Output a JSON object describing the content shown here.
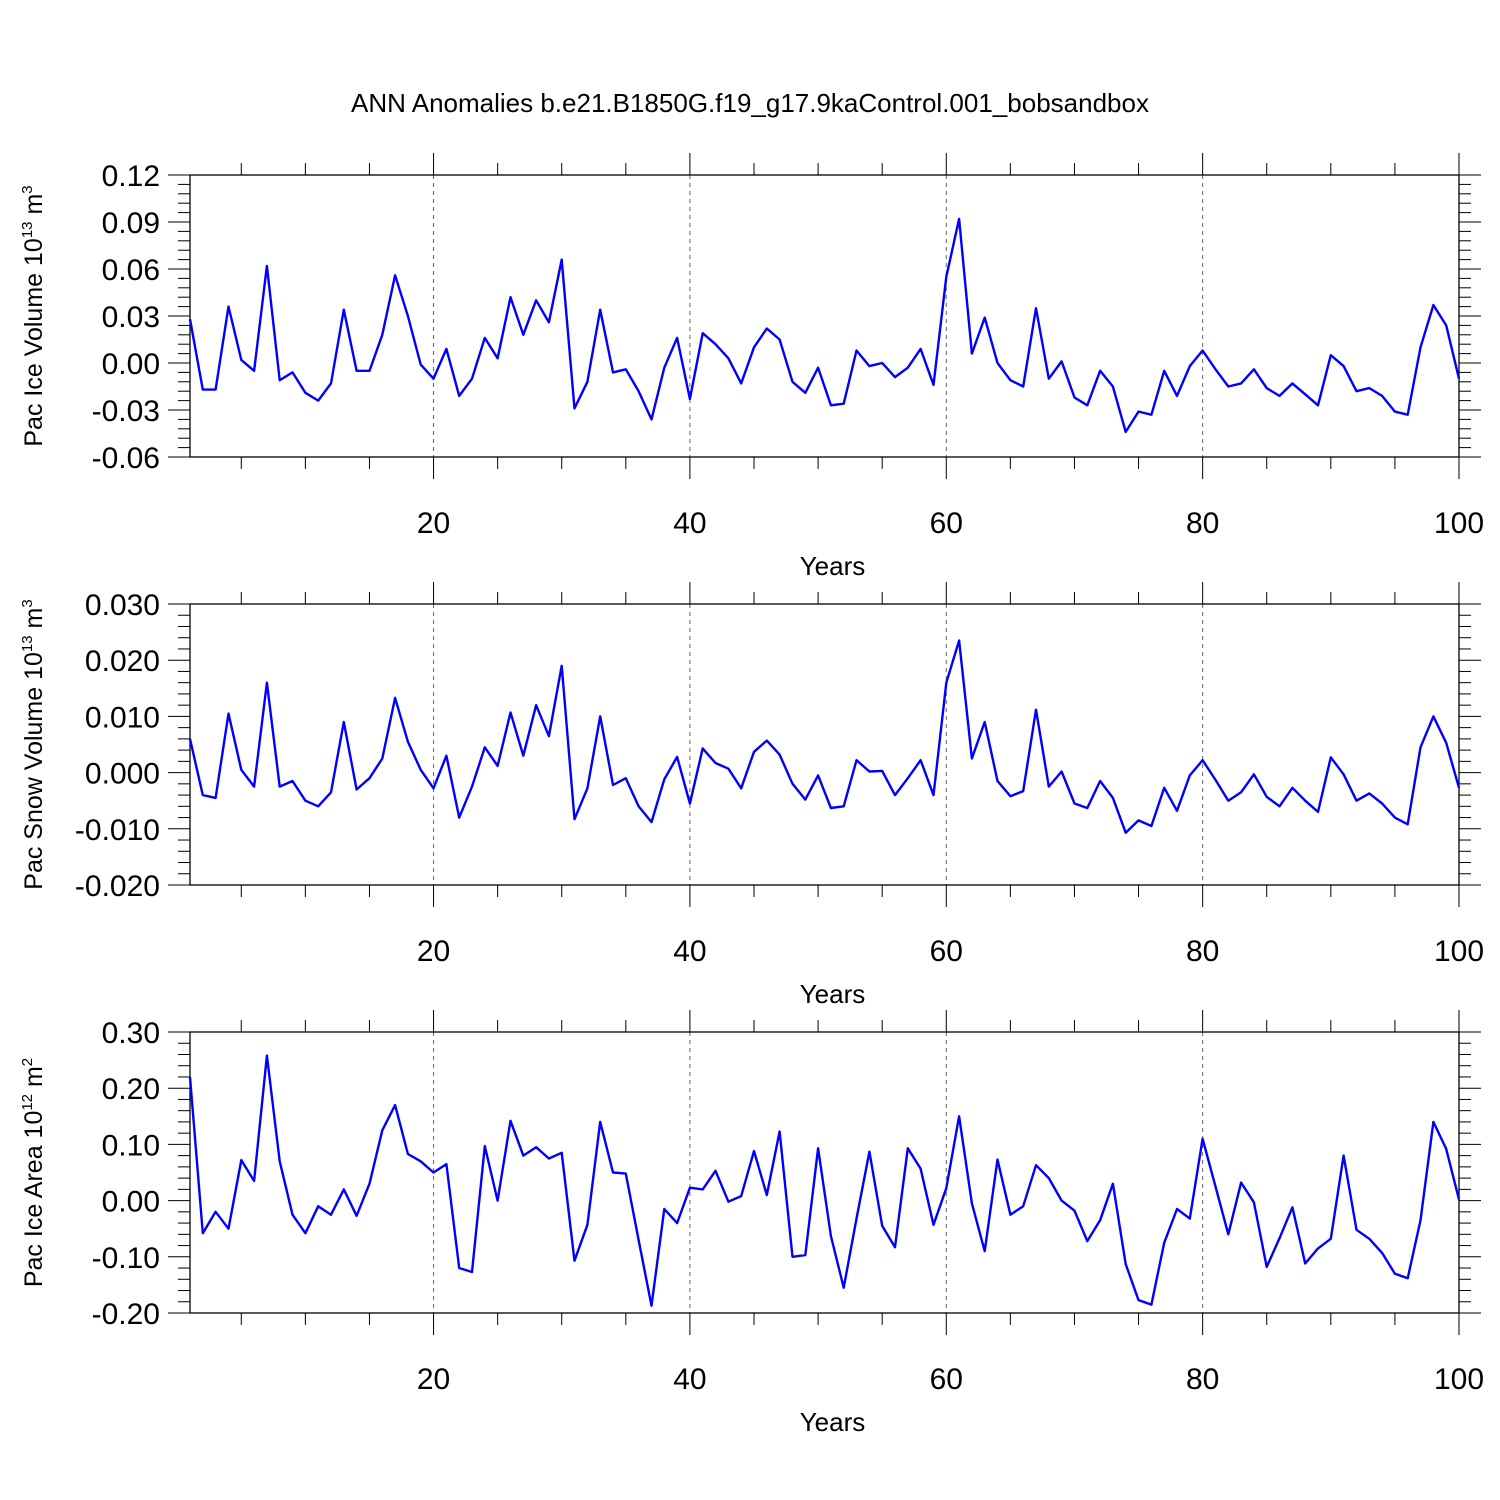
{
  "title": "ANN Anomalies b.e21.B1850G.f19_g17.9kaControl.001_bobsandbox",
  "colors": {
    "line": "#0000ff",
    "axis": "#000000",
    "grid": "#666666"
  },
  "chart_data": [
    {
      "type": "line",
      "ylabel": {
        "text": "Pac Ice Volume 10",
        "exp": "13",
        "unit_text": " m",
        "unit_exp": "3"
      },
      "xlabel": "Years",
      "xlim": [
        1,
        100
      ],
      "ylim": [
        -0.06,
        0.12
      ],
      "xticks": [
        20,
        40,
        60,
        80,
        100
      ],
      "xtick_labels": [
        "20",
        "40",
        "60",
        "80",
        "100"
      ],
      "yticks": [
        -0.06,
        -0.03,
        0.0,
        0.03,
        0.06,
        0.09,
        0.12
      ],
      "ytick_labels": [
        "-0.06",
        "-0.03",
        "0.00",
        "0.03",
        "0.06",
        "0.09",
        "0.12"
      ],
      "grid": "vertical dashed at major x ticks",
      "series": [
        {
          "x_start": 1,
          "values": [
            0.028,
            -0.017,
            -0.017,
            0.036,
            0.002,
            -0.005,
            0.062,
            -0.011,
            -0.006,
            -0.019,
            -0.024,
            -0.013,
            0.034,
            -0.005,
            -0.005,
            0.018,
            0.056,
            0.03,
            -0.001,
            -0.01,
            0.009,
            -0.021,
            -0.01,
            0.016,
            0.003,
            0.042,
            0.018,
            0.04,
            0.026,
            0.066,
            -0.029,
            -0.012,
            0.034,
            -0.006,
            -0.004,
            -0.018,
            -0.036,
            -0.003,
            0.016,
            -0.023,
            0.019,
            0.012,
            0.003,
            -0.013,
            0.01,
            0.022,
            0.015,
            -0.012,
            -0.019,
            -0.003,
            -0.027,
            -0.026,
            0.008,
            -0.002,
            0.0,
            -0.009,
            -0.003,
            0.009,
            -0.014,
            0.055,
            0.092,
            0.006,
            0.029,
            0.0,
            -0.011,
            -0.015,
            0.035,
            -0.01,
            0.001,
            -0.022,
            -0.027,
            -0.005,
            -0.015,
            -0.044,
            -0.031,
            -0.033,
            -0.005,
            -0.021,
            -0.002,
            0.008,
            -0.004,
            -0.015,
            -0.013,
            -0.004,
            -0.016,
            -0.021,
            -0.013,
            -0.02,
            -0.027,
            0.005,
            -0.002,
            -0.018,
            -0.016,
            -0.021,
            -0.031,
            -0.033,
            0.01,
            0.037,
            0.024,
            -0.01
          ]
        }
      ]
    },
    {
      "type": "line",
      "ylabel": {
        "text": "Pac Snow Volume 10",
        "exp": "13",
        "unit_text": " m",
        "unit_exp": "3"
      },
      "xlabel": "Years",
      "xlim": [
        1,
        100
      ],
      "ylim": [
        -0.02,
        0.03
      ],
      "xticks": [
        20,
        40,
        60,
        80,
        100
      ],
      "xtick_labels": [
        "20",
        "40",
        "60",
        "80",
        "100"
      ],
      "yticks": [
        -0.02,
        -0.01,
        0.0,
        0.01,
        0.02,
        0.03
      ],
      "ytick_labels": [
        "-0.020",
        "-0.010",
        "0.000",
        "0.010",
        "0.020",
        "0.030"
      ],
      "grid": "vertical dashed at major x ticks",
      "series": [
        {
          "x_start": 1,
          "values": [
            0.006,
            -0.004,
            -0.0045,
            0.0105,
            0.0005,
            -0.0025,
            0.016,
            -0.0025,
            -0.0015,
            -0.005,
            -0.006,
            -0.0035,
            0.009,
            -0.003,
            -0.001,
            0.0025,
            0.0133,
            0.0055,
            0.0005,
            -0.0028,
            0.003,
            -0.008,
            -0.0025,
            0.0045,
            0.0012,
            0.0107,
            0.003,
            0.012,
            0.0065,
            0.019,
            -0.0083,
            -0.0028,
            0.01,
            -0.0022,
            -0.001,
            -0.006,
            -0.0088,
            -0.0012,
            0.0028,
            -0.0055,
            0.0043,
            0.0017,
            0.0007,
            -0.0028,
            0.0037,
            0.0057,
            0.0032,
            -0.002,
            -0.0048,
            -0.0005,
            -0.0063,
            -0.006,
            0.0022,
            0.0002,
            0.0003,
            -0.004,
            -0.001,
            0.0022,
            -0.004,
            0.016,
            0.0235,
            0.0025,
            0.009,
            -0.0015,
            -0.0042,
            -0.0033,
            0.0112,
            -0.0025,
            0.0002,
            -0.0055,
            -0.0063,
            -0.0015,
            -0.0045,
            -0.0107,
            -0.0085,
            -0.0095,
            -0.0027,
            -0.0068,
            -0.0005,
            0.0022,
            -0.0013,
            -0.005,
            -0.0035,
            -0.0003,
            -0.0043,
            -0.006,
            -0.0027,
            -0.005,
            -0.007,
            0.0027,
            -0.0003,
            -0.005,
            -0.0037,
            -0.0055,
            -0.008,
            -0.0092,
            0.0045,
            0.01,
            0.0053,
            -0.0027
          ]
        }
      ]
    },
    {
      "type": "line",
      "ylabel": {
        "text": "Pac Ice Area 10",
        "exp": "12",
        "unit_text": " m",
        "unit_exp": "2"
      },
      "xlabel": "Years",
      "xlim": [
        1,
        100
      ],
      "ylim": [
        -0.2,
        0.3
      ],
      "xticks": [
        20,
        40,
        60,
        80,
        100
      ],
      "xtick_labels": [
        "20",
        "40",
        "60",
        "80",
        "100"
      ],
      "yticks": [
        -0.2,
        -0.1,
        0.0,
        0.1,
        0.2,
        0.3
      ],
      "ytick_labels": [
        "-0.20",
        "-0.10",
        "0.00",
        "0.10",
        "0.20",
        "0.30"
      ],
      "grid": "vertical dashed at major x ticks",
      "series": [
        {
          "x_start": 1,
          "values": [
            0.22,
            -0.058,
            -0.02,
            -0.05,
            0.072,
            0.035,
            0.258,
            0.07,
            -0.025,
            -0.058,
            -0.01,
            -0.025,
            0.02,
            -0.027,
            0.03,
            0.125,
            0.17,
            0.083,
            0.07,
            0.05,
            0.065,
            -0.12,
            -0.127,
            0.097,
            0.0,
            0.142,
            0.08,
            0.095,
            0.075,
            0.085,
            -0.107,
            -0.043,
            0.14,
            0.05,
            0.048,
            -0.07,
            -0.187,
            -0.015,
            -0.04,
            0.023,
            0.02,
            0.053,
            -0.002,
            0.008,
            0.088,
            0.01,
            0.123,
            -0.1,
            -0.097,
            0.093,
            -0.063,
            -0.155,
            -0.032,
            0.087,
            -0.045,
            -0.083,
            0.093,
            0.057,
            -0.043,
            0.022,
            0.15,
            -0.005,
            -0.09,
            0.073,
            -0.025,
            -0.01,
            0.063,
            0.04,
            0.0,
            -0.018,
            -0.072,
            -0.035,
            0.03,
            -0.113,
            -0.177,
            -0.185,
            -0.075,
            -0.015,
            -0.032,
            0.11,
            0.025,
            -0.06,
            0.032,
            -0.003,
            -0.118,
            -0.067,
            -0.012,
            -0.112,
            -0.085,
            -0.068,
            0.08,
            -0.052,
            -0.068,
            -0.093,
            -0.13,
            -0.138,
            -0.035,
            0.14,
            0.092,
            0.002
          ]
        }
      ]
    }
  ]
}
